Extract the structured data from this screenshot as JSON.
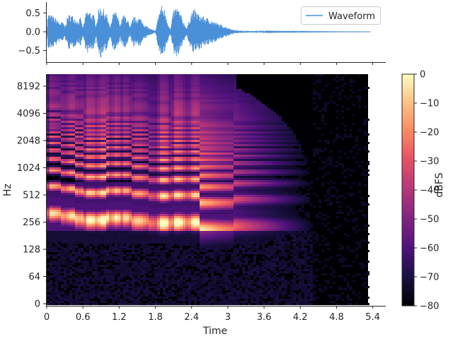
{
  "chart_data": [
    {
      "type": "line",
      "legend": [
        "Waveform"
      ],
      "legend_placement": "top-right",
      "series": [
        {
          "name": "Waveform",
          "color": "#4a90d9",
          "envelope": {
            "t": [
              0.0,
              0.02,
              0.08,
              0.16,
              0.22,
              0.26,
              0.3,
              0.35,
              0.4,
              0.46,
              0.52,
              0.56,
              0.6,
              0.66,
              0.72,
              0.78,
              0.82,
              0.86,
              0.9,
              0.95,
              1.0,
              1.05,
              1.1,
              1.14,
              1.18,
              1.22,
              1.26,
              1.3,
              1.34,
              1.38,
              1.43,
              1.48,
              1.52,
              1.56,
              1.62,
              1.7,
              1.8,
              1.86,
              1.9,
              1.96,
              2.0,
              2.05,
              2.1,
              2.16,
              2.2,
              2.26,
              2.32,
              2.4,
              2.45,
              2.5,
              2.55,
              2.62,
              2.7,
              2.8,
              2.9,
              3.0,
              3.05,
              3.1,
              3.2,
              3.4,
              3.6,
              3.8,
              4.2,
              4.8,
              5.36
            ],
            "amp": [
              0.0,
              0.5,
              0.45,
              0.35,
              0.25,
              0.28,
              0.15,
              0.45,
              0.48,
              0.4,
              0.3,
              0.38,
              0.12,
              0.58,
              0.55,
              0.45,
              0.2,
              0.62,
              0.7,
              0.6,
              0.45,
              0.12,
              0.5,
              0.55,
              0.4,
              0.2,
              0.45,
              0.45,
              0.35,
              0.1,
              0.4,
              0.38,
              0.4,
              0.35,
              0.2,
              0.1,
              0.02,
              0.55,
              0.72,
              0.6,
              0.3,
              0.05,
              0.6,
              0.68,
              0.55,
              0.3,
              0.1,
              0.55,
              0.6,
              0.5,
              0.45,
              0.4,
              0.35,
              0.25,
              0.18,
              0.12,
              0.08,
              0.05,
              0.03,
              0.02,
              0.015,
              0.01,
              0.008,
              0.004,
              0.002
            ]
          }
        }
      ],
      "yticks": [
        -0.5,
        0.0,
        0.5
      ],
      "ylim": [
        -0.85,
        0.85
      ],
      "xlim": [
        0,
        5.6
      ]
    },
    {
      "type": "heatmap",
      "xlabel": "Time",
      "ylabel": "Hz",
      "xticks": [
        "0",
        "0.6",
        "1.2",
        "1.8",
        "2.4",
        "3",
        "3.6",
        "4.2",
        "4.8",
        "5.4"
      ],
      "xtick_values": [
        0,
        0.6,
        1.2,
        1.8,
        2.4,
        3.0,
        3.6,
        4.2,
        4.8,
        5.4
      ],
      "yticks": [
        "0",
        "64",
        "128",
        "256",
        "512",
        "1024",
        "2048",
        "4096",
        "8192"
      ],
      "ytick_values": [
        0,
        64,
        128,
        256,
        512,
        1024,
        2048,
        4096,
        8192
      ],
      "yscale": "log2",
      "colormap": "magma",
      "colorbar": {
        "label": "dBFS",
        "ticks": [
          "0",
          "-10",
          "-20",
          "-30",
          "-40",
          "-50",
          "-60",
          "-70",
          "-80"
        ],
        "range": [
          -80,
          0
        ]
      },
      "notes": {
        "fundamental_hz": [
          {
            "t0": 0.0,
            "t1": 0.2,
            "f0": 320
          },
          {
            "t0": 0.2,
            "t1": 0.45,
            "f0": 300
          },
          {
            "t0": 0.45,
            "t1": 0.6,
            "f0": 280
          },
          {
            "t0": 0.6,
            "t1": 0.95,
            "f0": 270
          },
          {
            "t0": 0.95,
            "t1": 1.4,
            "f0": 285
          },
          {
            "t0": 1.4,
            "t1": 1.65,
            "f0": 265
          },
          {
            "t0": 1.65,
            "t1": 2.05,
            "f0": 250
          },
          {
            "t0": 2.05,
            "t1": 2.5,
            "f0": 255
          },
          {
            "t0": 2.5,
            "t1": 3.05,
            "f0": 210
          },
          {
            "t0": 3.05,
            "t1": 4.4,
            "f0": 230
          }
        ]
      },
      "time_range": [
        0,
        5.36
      ]
    }
  ]
}
